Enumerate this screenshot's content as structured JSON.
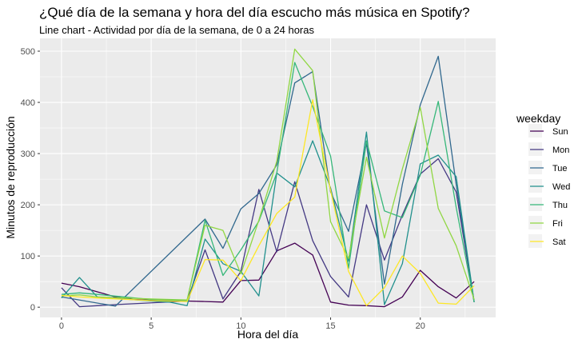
{
  "title": "¿Qué día de la semana y hora del día escucho más música en Spotify?",
  "subtitle": "Line chart - Actividad por día de la semana, de 0 a 24 horas",
  "chart_data": {
    "type": "line",
    "xlabel": "Hora del día",
    "ylabel": "Minutos de reproducción",
    "xlim": [
      -1.2,
      24.2
    ],
    "ylim": [
      -20,
      525
    ],
    "xticks": [
      0,
      5,
      10,
      15,
      20
    ],
    "yticks": [
      0,
      100,
      200,
      300,
      400,
      500
    ],
    "grid": true,
    "legend": {
      "title": "weekday",
      "position": "right"
    },
    "series": [
      {
        "name": "Sun",
        "color": "#440154",
        "x": [
          0,
          1,
          2,
          3,
          4,
          5,
          6,
          7,
          8,
          9,
          10,
          11,
          12,
          13,
          14,
          15,
          16,
          17,
          18,
          19,
          20,
          21,
          22,
          23
        ],
        "y": [
          47,
          40,
          30,
          20,
          15,
          14,
          13,
          12,
          11,
          10,
          52,
          53,
          110,
          125,
          102,
          10,
          4,
          3,
          1,
          20,
          72,
          40,
          18,
          50
        ]
      },
      {
        "name": "Mon",
        "color": "#443983",
        "x": [
          0,
          1,
          3,
          7,
          8,
          9,
          10,
          11,
          12,
          13,
          14,
          15,
          16,
          17,
          18,
          19,
          20,
          21,
          22,
          23
        ],
        "y": [
          38,
          1,
          5,
          12,
          112,
          16,
          70,
          230,
          108,
          245,
          130,
          60,
          20,
          200,
          92,
          180,
          260,
          290,
          225,
          10
        ]
      },
      {
        "name": "Tue",
        "color": "#31688e",
        "x": [
          0,
          3,
          8,
          9,
          10,
          11,
          12,
          13,
          14,
          15,
          16,
          17,
          18,
          19,
          20,
          21,
          22,
          23
        ],
        "y": [
          20,
          2,
          172,
          115,
          192,
          222,
          278,
          438,
          460,
          225,
          148,
          320,
          45,
          240,
          395,
          490,
          240,
          10
        ]
      },
      {
        "name": "Wed",
        "color": "#21908d",
        "x": [
          0,
          1,
          2,
          5,
          6,
          7,
          8,
          9,
          10,
          11,
          12,
          13,
          14,
          15,
          16,
          17,
          18,
          19,
          20,
          21,
          22,
          23
        ],
        "y": [
          18,
          58,
          20,
          12,
          10,
          3,
          133,
          85,
          70,
          22,
          262,
          235,
          325,
          233,
          90,
          342,
          5,
          85,
          280,
          297,
          255,
          10
        ]
      },
      {
        "name": "Thu",
        "color": "#35b779",
        "x": [
          0,
          1,
          2,
          5,
          7,
          8,
          9,
          10,
          11,
          12,
          13,
          14,
          15,
          16,
          17,
          18,
          19,
          20,
          21,
          22,
          23
        ],
        "y": [
          25,
          28,
          25,
          15,
          13,
          170,
          62,
          112,
          168,
          262,
          478,
          392,
          295,
          76,
          325,
          188,
          175,
          258,
          402,
          195,
          10
        ]
      },
      {
        "name": "Fri",
        "color": "#90d743",
        "x": [
          0,
          1,
          2,
          5,
          7,
          8,
          9,
          10,
          11,
          12,
          13,
          14,
          15,
          16,
          17,
          18,
          19,
          20,
          21,
          22,
          23
        ],
        "y": [
          22,
          24,
          20,
          16,
          14,
          160,
          150,
          65,
          170,
          285,
          504,
          462,
          167,
          95,
          293,
          135,
          270,
          390,
          193,
          120,
          15
        ]
      },
      {
        "name": "Sat",
        "color": "#fde725",
        "x": [
          0,
          1,
          2,
          5,
          7,
          8,
          9,
          10,
          11,
          12,
          13,
          14,
          15,
          16,
          17,
          18,
          19,
          20,
          21,
          22,
          23
        ],
        "y": [
          23,
          20,
          18,
          13,
          11,
          93,
          92,
          52,
          120,
          183,
          215,
          405,
          228,
          70,
          3,
          38,
          100,
          66,
          8,
          6,
          42
        ]
      }
    ]
  }
}
